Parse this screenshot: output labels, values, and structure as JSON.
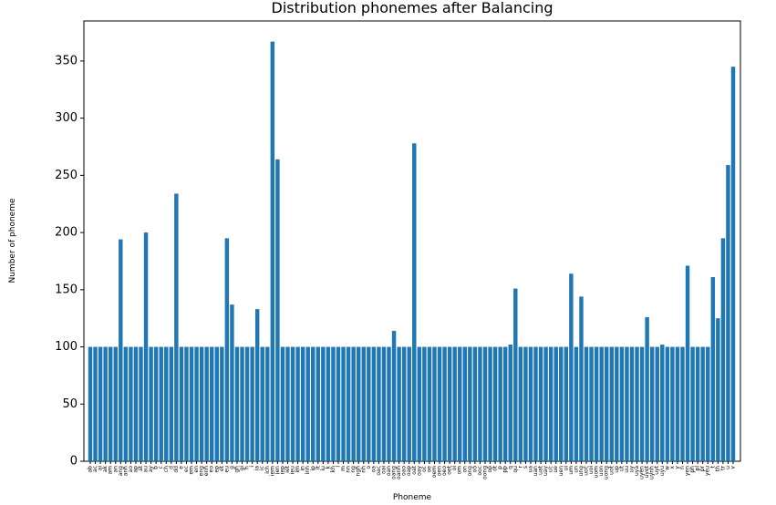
{
  "chart_data": {
    "type": "bar",
    "title": "Distribution phonemes after Balancing",
    "x_label": "Phoneme",
    "y_label": "Number of phoneme",
    "color": "#1f77b4",
    "categories": [
      "ab",
      "ac",
      "ai",
      "ak",
      "am",
      "an",
      "ang",
      "anh",
      "ao",
      "ap",
      "at",
      "au",
      "ay",
      "b",
      "c",
      "ch",
      "d",
      "dd",
      "e",
      "ec",
      "em",
      "en",
      "eng",
      "enh",
      "eo",
      "ep",
      "et",
      "eu",
      "g",
      "gh",
      "gi",
      "h",
      "i",
      "ia",
      "ic",
      "ich",
      "iem",
      "ien",
      "iep",
      "iet",
      "ieu",
      "im",
      "in",
      "inh",
      "ip",
      "it",
      "iu",
      "k",
      "kh",
      "l",
      "m",
      "nn",
      "ng",
      "ngh",
      "nh",
      "o",
      "oa",
      "oac",
      "oai",
      "oan",
      "oang",
      "oanh",
      "oao",
      "oap",
      "oat",
      "oay",
      "oc",
      "oe",
      "oem",
      "oen",
      "oeo",
      "oet",
      "oi",
      "om",
      "on",
      "ong",
      "oo",
      "ooc",
      "oong",
      "op",
      "ot",
      "p",
      "pp",
      "q",
      "qu",
      "r",
      "s",
      "ua",
      "uan",
      "uat",
      "uay",
      "uc",
      "ue",
      "uen",
      "ui",
      "um",
      "un",
      "ung",
      "uoc",
      "uoi",
      "uom",
      "uon",
      "uong",
      "uot",
      "up",
      "ut",
      "uu",
      "uy",
      "uya",
      "uyen",
      "uyet",
      "uynh",
      "uyt",
      "uyu",
      "w",
      "x",
      "y",
      "n",
      "yen",
      "ph",
      "pl",
      "pr",
      "yeu",
      "t",
      "th",
      "tr",
      "u",
      "v"
    ],
    "values": [
      100,
      100,
      100,
      100,
      100,
      100,
      194,
      100,
      100,
      100,
      100,
      200,
      100,
      100,
      100,
      100,
      100,
      234,
      100,
      100,
      100,
      100,
      100,
      100,
      100,
      100,
      100,
      195,
      137,
      100,
      100,
      100,
      100,
      133,
      100,
      100,
      367,
      264,
      100,
      100,
      100,
      100,
      100,
      100,
      100,
      100,
      100,
      100,
      100,
      100,
      100,
      100,
      100,
      100,
      100,
      100,
      100,
      100,
      100,
      100,
      114,
      100,
      100,
      100,
      278,
      100,
      100,
      100,
      100,
      100,
      100,
      100,
      100,
      100,
      100,
      100,
      100,
      100,
      100,
      100,
      100,
      100,
      100,
      102,
      151,
      100,
      100,
      100,
      100,
      100,
      100,
      100,
      100,
      100,
      100,
      164,
      100,
      144,
      100,
      100,
      100,
      100,
      100,
      100,
      100,
      100,
      100,
      100,
      100,
      100,
      126,
      100,
      100,
      102,
      100,
      100,
      100,
      100,
      171,
      100,
      100,
      100,
      100,
      161,
      125,
      195,
      259,
      345
    ],
    "ylim": [
      0,
      385
    ],
    "yticks": [
      0,
      50,
      100,
      150,
      200,
      250,
      300,
      350
    ]
  }
}
